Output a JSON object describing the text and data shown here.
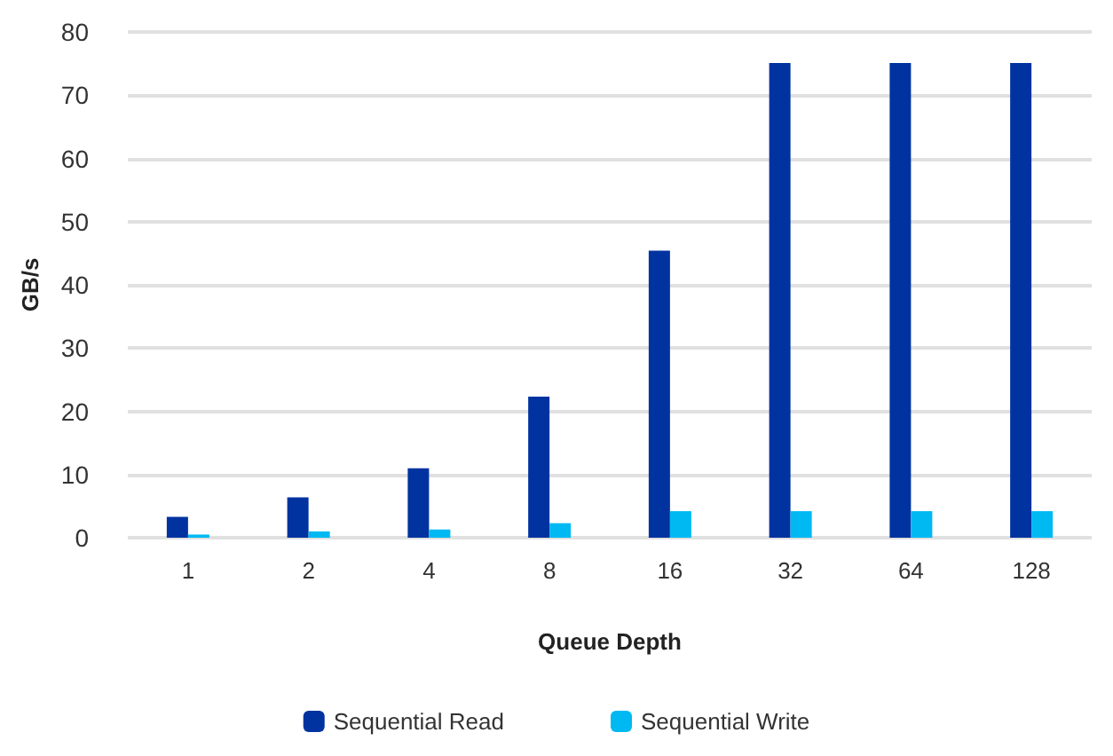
{
  "chart_data": {
    "type": "bar",
    "xlabel": "Queue Depth",
    "ylabel": "GB/s",
    "categories": [
      "1",
      "2",
      "4",
      "8",
      "16",
      "32",
      "64",
      "128"
    ],
    "series": [
      {
        "name": "Sequential Read",
        "color": "#0033a0",
        "values": [
          3.3,
          6.4,
          11.0,
          22.3,
          45.4,
          75.1,
          75.1,
          75.1
        ]
      },
      {
        "name": "Sequential Write",
        "color": "#00b9f2",
        "values": [
          0.5,
          1.0,
          1.3,
          2.3,
          4.2,
          4.2,
          4.2,
          4.2
        ]
      }
    ],
    "ylim": [
      0,
      80
    ],
    "yticks": [
      0,
      10,
      20,
      30,
      40,
      50,
      60,
      70,
      80
    ],
    "grid": "y",
    "legend": "bottom"
  }
}
